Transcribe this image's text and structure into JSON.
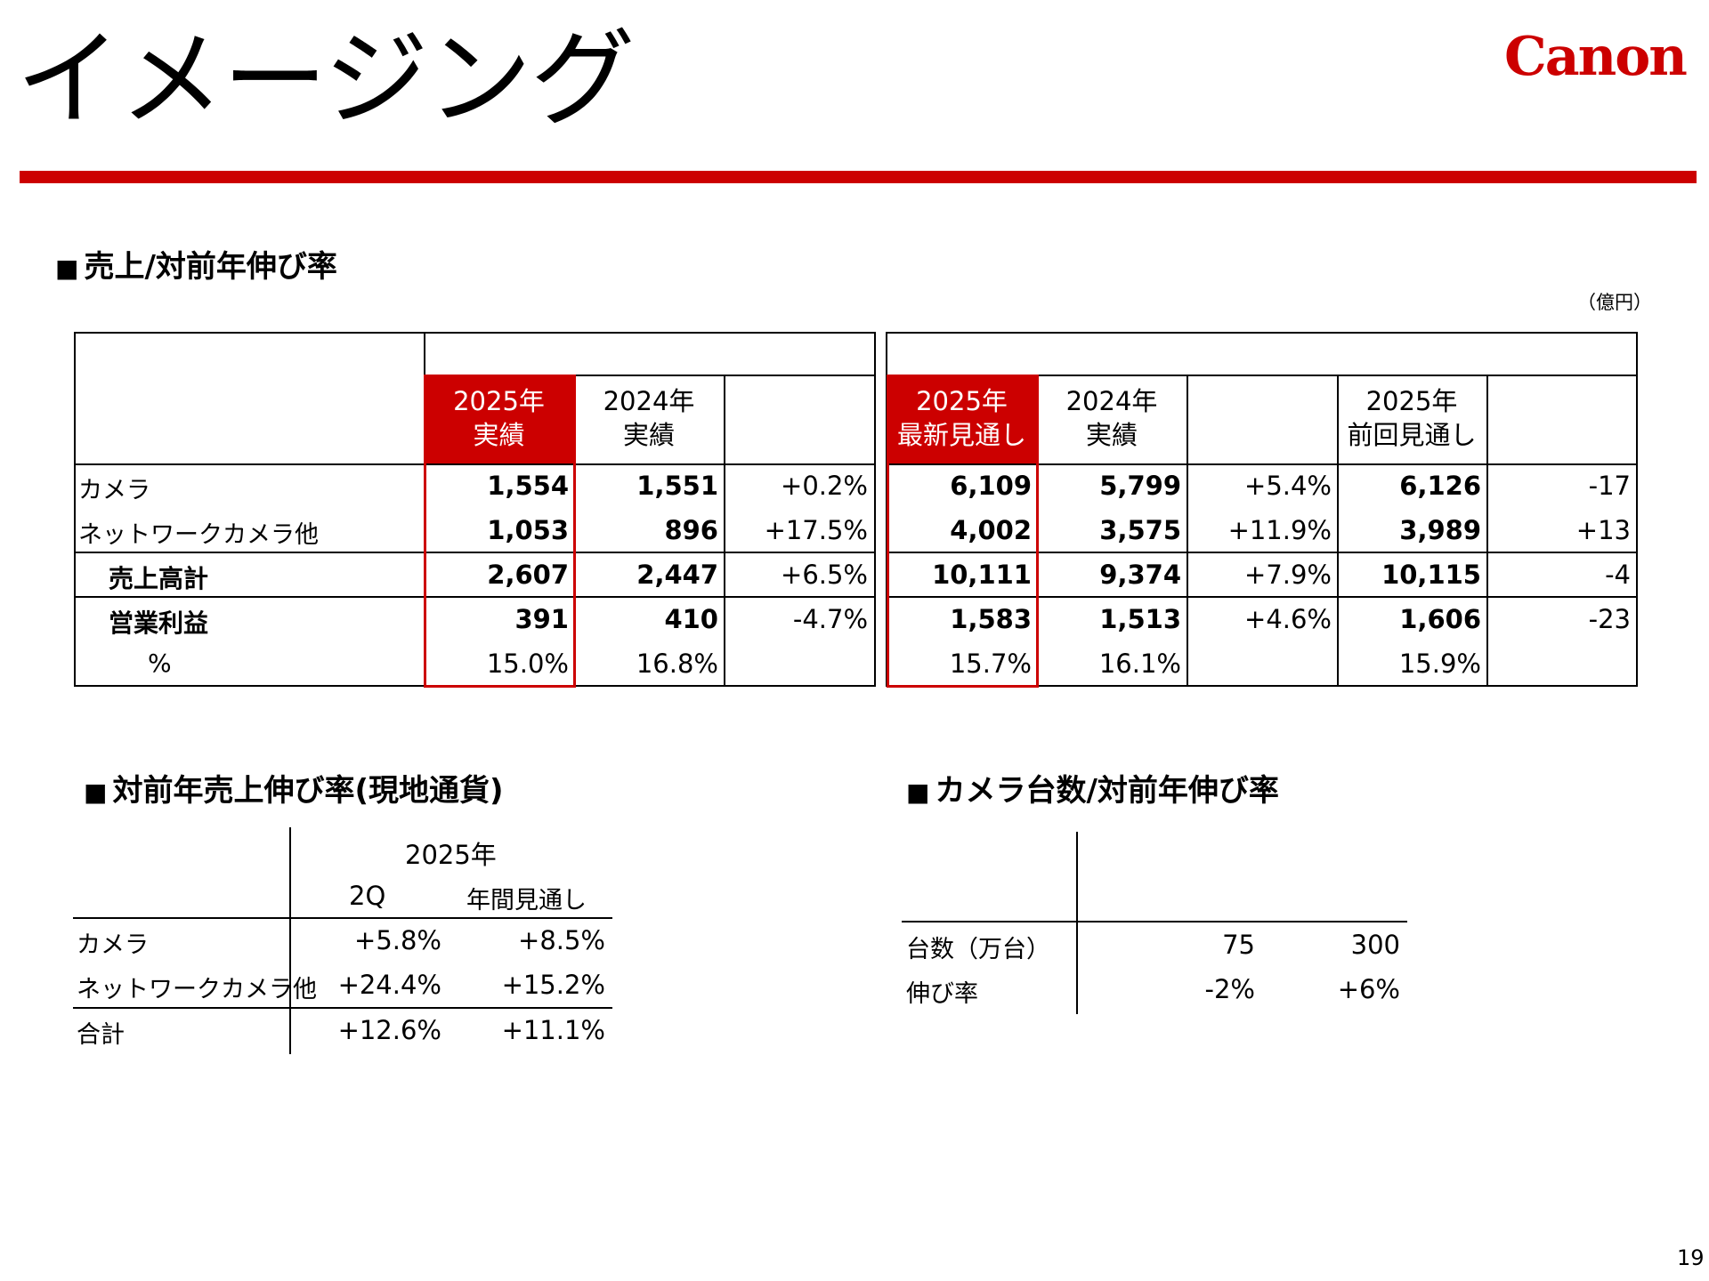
{
  "title": "イメージング",
  "logo_text": "Canon",
  "page_number": "19",
  "sales": {
    "heading": "売上/対前年伸び率",
    "unit": "（億円）",
    "group1_headers": [
      {
        "line1": "2025年",
        "line2": "実績"
      },
      {
        "line1": "2024年",
        "line2": "実績"
      }
    ],
    "group2_headers": [
      {
        "line1": "2025年",
        "line2": "最新見通し"
      },
      {
        "line1": "2024年",
        "line2": "実績"
      },
      {
        "line1": "2025年",
        "line2": "前回見通し"
      }
    ],
    "rows": [
      {
        "label": "カメラ",
        "v": [
          "1,554",
          "1,551",
          "+0.2%",
          "6,109",
          "5,799",
          "+5.4%",
          "6,126",
          "-17"
        ]
      },
      {
        "label": "ネットワークカメラ他",
        "v": [
          "1,053",
          "896",
          "+17.5%",
          "4,002",
          "3,575",
          "+11.9%",
          "3,989",
          "+13"
        ]
      },
      {
        "label": "売上高計",
        "v": [
          "2,607",
          "2,447",
          "+6.5%",
          "10,111",
          "9,374",
          "+7.9%",
          "10,115",
          "-4"
        ]
      },
      {
        "label": "営業利益",
        "v": [
          "391",
          "410",
          "-4.7%",
          "1,583",
          "1,513",
          "+4.6%",
          "1,606",
          "-23"
        ]
      },
      {
        "label": "%",
        "v": [
          "15.0%",
          "16.8%",
          "",
          "15.7%",
          "16.1%",
          "",
          "15.9%",
          ""
        ]
      }
    ]
  },
  "local_currency": {
    "heading": "対前年売上伸び率(現地通貨)",
    "year": "2025年",
    "cols": [
      "2Q",
      "年間見通し"
    ],
    "rows": [
      {
        "label": "カメラ",
        "v": [
          "+5.8%",
          "+8.5%"
        ]
      },
      {
        "label": "ネットワークカメラ他",
        "v": [
          "+24.4%",
          "+15.2%"
        ]
      },
      {
        "label": "合計",
        "v": [
          "+12.6%",
          "+11.1%"
        ]
      }
    ]
  },
  "camera_units": {
    "heading": "カメラ台数/対前年伸び率",
    "rows": [
      {
        "label": "台数（万台）",
        "v": [
          "75",
          "300"
        ]
      },
      {
        "label": "伸び率",
        "v": [
          "-2%",
          "+6%"
        ]
      }
    ]
  },
  "colors": {
    "accent": "#cc0000"
  }
}
